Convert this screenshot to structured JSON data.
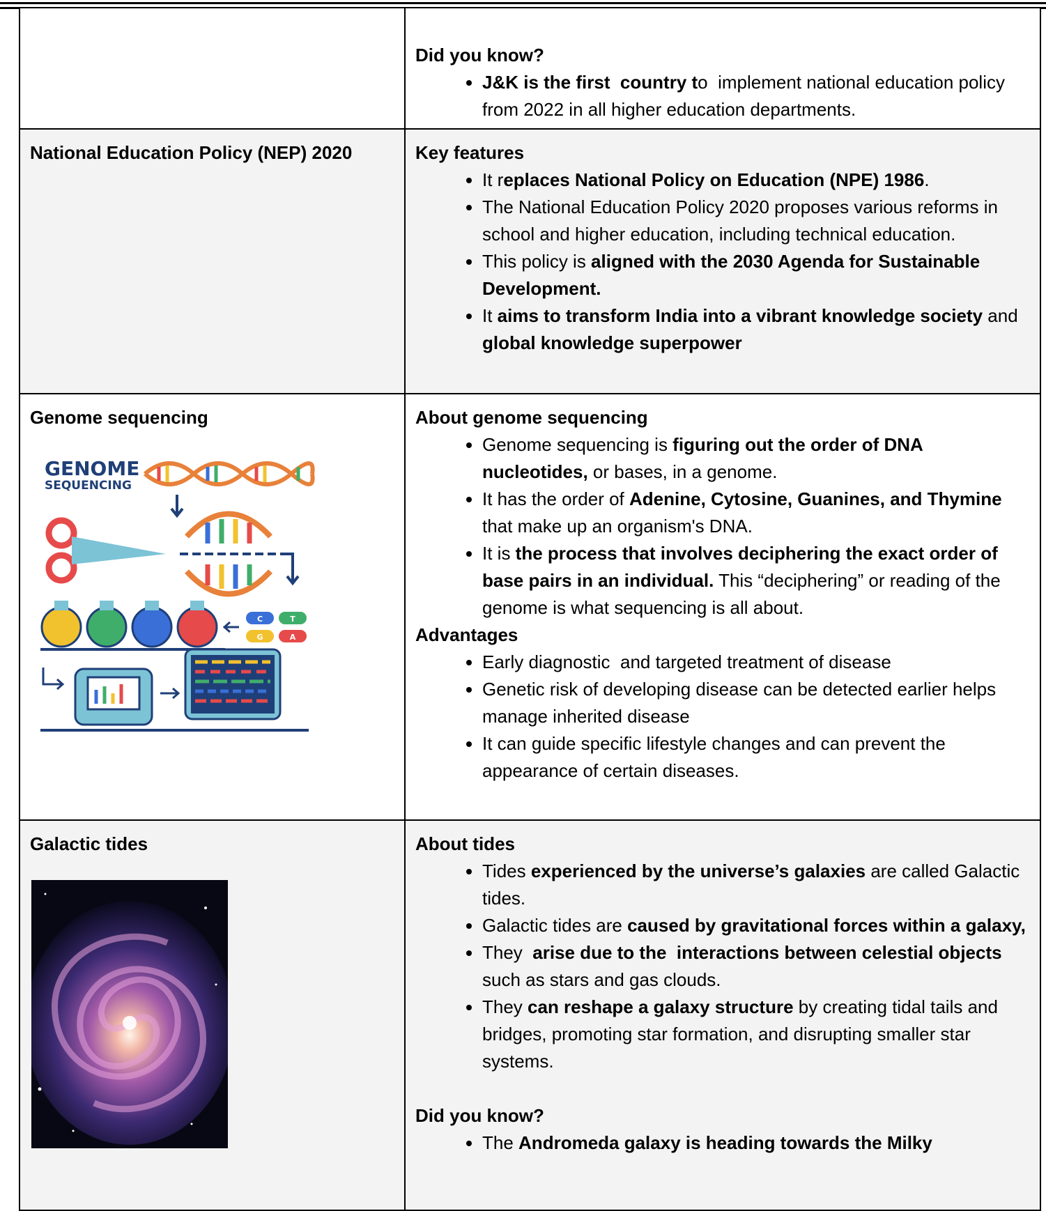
{
  "rows": [
    {
      "left": {
        "title": null
      },
      "right": {
        "sections": [
          {
            "heading": "Did you know?",
            "bullets": [
              [
                {
                  "text": "J&K is the first  country t",
                  "bold": true
                },
                {
                  "text": "o  implement national education policy from 2022 in all higher education departments.",
                  "bold": false
                }
              ]
            ]
          }
        ]
      }
    },
    {
      "left": {
        "title": "National Education Policy (NEP) 2020"
      },
      "right": {
        "sections": [
          {
            "heading": "Key features",
            "bullets": [
              [
                {
                  "text": "It r",
                  "bold": false
                },
                {
                  "text": "eplaces National Policy on Education (NPE) 1986",
                  "bold": true
                },
                {
                  "text": ".",
                  "bold": false
                }
              ],
              [
                {
                  "text": "The National Education Policy 2020 proposes various reforms in school and higher education, including technical education.",
                  "bold": false
                }
              ],
              [
                {
                  "text": "This policy is ",
                  "bold": false
                },
                {
                  "text": "aligned with the 2030 Agenda for Sustainable Development.",
                  "bold": true
                }
              ],
              [
                {
                  "text": "It ",
                  "bold": false
                },
                {
                  "text": "aims to transform India into a vibrant knowledge society",
                  "bold": true
                },
                {
                  "text": " and ",
                  "bold": false
                },
                {
                  "text": "global knowledge superpower",
                  "bold": true
                }
              ]
            ]
          }
        ]
      }
    },
    {
      "left": {
        "title": "Genome sequencing"
      },
      "right": {
        "sections": [
          {
            "heading": "About genome sequencing",
            "bullets": [
              [
                {
                  "text": "Genome sequencing is ",
                  "bold": false
                },
                {
                  "text": "figuring out the order of DNA nucleotides,",
                  "bold": true
                },
                {
                  "text": " or bases, in a genome.",
                  "bold": false
                }
              ],
              [
                {
                  "text": "It has the order of ",
                  "bold": false
                },
                {
                  "text": "Adenine, Cytosine, Guanines, and Thymine",
                  "bold": true
                },
                {
                  "text": " that make up an organism's DNA.",
                  "bold": false
                }
              ],
              [
                {
                  "text": "It is ",
                  "bold": false
                },
                {
                  "text": "the process that involves deciphering the exact order of base pairs in an individual.",
                  "bold": true
                },
                {
                  "text": " This “deciphering” or reading of the genome is what sequencing is all about.",
                  "bold": false
                }
              ]
            ]
          },
          {
            "heading": "Advantages",
            "bullets": [
              [
                {
                  "text": "Early diagnostic  and targeted treatment of disease",
                  "bold": false
                }
              ],
              [
                {
                  "text": "Genetic risk of developing disease can be detected earlier helps manage inherited disease",
                  "bold": false
                }
              ],
              [
                {
                  "text": "It can guide specific lifestyle changes and can prevent the appearance of certain diseases.",
                  "bold": false
                }
              ]
            ]
          }
        ]
      }
    },
    {
      "left": {
        "title": "Galactic tides"
      },
      "right": {
        "sections": [
          {
            "heading": "About tides",
            "bullets": [
              [
                {
                  "text": "Tides ",
                  "bold": false
                },
                {
                  "text": "experienced by the universe’s galaxies",
                  "bold": true
                },
                {
                  "text": " are called Galactic tides.",
                  "bold": false
                }
              ],
              [
                {
                  "text": "Galactic tides are ",
                  "bold": false
                },
                {
                  "text": "caused by gravitational forces within a galaxy,",
                  "bold": true
                }
              ],
              [
                {
                  "text": "They ",
                  "bold": false
                },
                {
                  "text": " arise due to the  interactions between celestial objects",
                  "bold": true
                },
                {
                  "text": " such as stars and gas clouds.",
                  "bold": false
                }
              ],
              [
                {
                  "text": "They ",
                  "bold": false
                },
                {
                  "text": "can reshape a galaxy structure",
                  "bold": true
                },
                {
                  "text": " by creating tidal tails and bridges, promoting star formation, and disrupting smaller star systems.",
                  "bold": false
                }
              ]
            ]
          },
          {
            "heading": "Did you know?",
            "bullets": [
              [
                {
                  "text": "The ",
                  "bold": false
                },
                {
                  "text": "Andromeda galaxy is heading towards the Milky",
                  "bold": true
                }
              ]
            ]
          }
        ]
      }
    }
  ],
  "genome_image": {
    "title": "GENOME",
    "subtitle": "SEQUENCING",
    "bases": [
      "C",
      "T",
      "G",
      "A"
    ]
  }
}
